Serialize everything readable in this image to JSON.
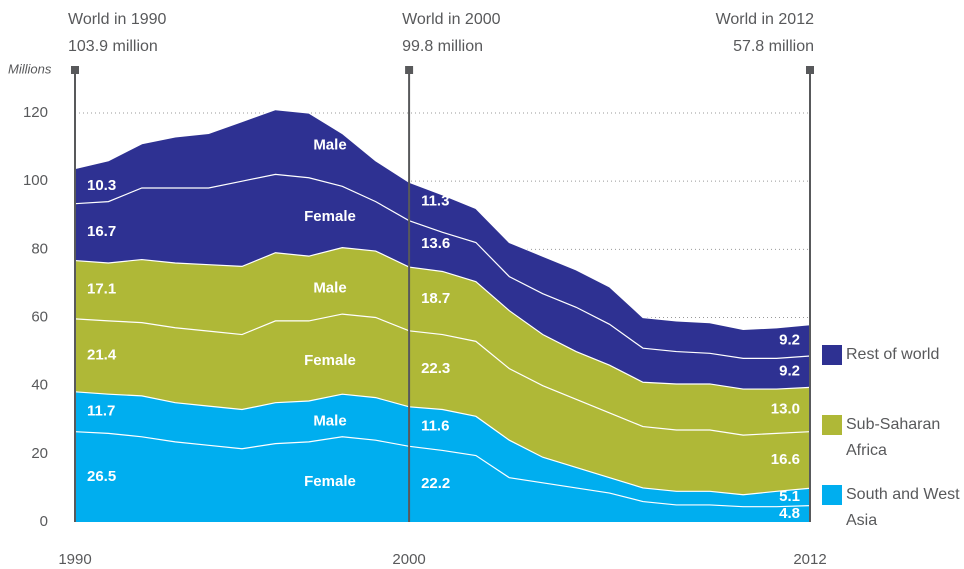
{
  "chart_data": {
    "type": "stacked_area",
    "y_axis_label": "Millions",
    "x": [
      1990,
      1991,
      1992,
      1993,
      1994,
      1995,
      1996,
      1997,
      1998,
      1999,
      2000,
      2001,
      2002,
      2003,
      2004,
      2005,
      2006,
      2007,
      2008,
      2009,
      2010,
      2011,
      2012
    ],
    "xlim": [
      1990,
      2012
    ],
    "xticks": [
      1990,
      2000,
      2012
    ],
    "ylim": [
      0,
      120
    ],
    "yticks": [
      0,
      20,
      40,
      60,
      80,
      100,
      120
    ],
    "grid": true,
    "groups": [
      {
        "name": "South and West Asia",
        "color": "#00aeef",
        "series": [
          {
            "name": "Female",
            "values": [
              26.5,
              26,
              25,
              23.5,
              22.5,
              21.5,
              23,
              23.5,
              25,
              24,
              22.2,
              21,
              19.5,
              13,
              11.5,
              10,
              8.5,
              6,
              5,
              5,
              4.5,
              4.5,
              4.8
            ],
            "value_labels": [
              "26.5",
              null,
              null,
              null,
              null,
              null,
              null,
              null,
              null,
              null,
              "22.2",
              null,
              null,
              null,
              null,
              null,
              null,
              null,
              null,
              null,
              null,
              null,
              "4.8"
            ]
          },
          {
            "name": "Male",
            "values": [
              11.7,
              11.5,
              12,
              11.5,
              11.5,
              11.5,
              12,
              12,
              12.5,
              12.5,
              11.6,
              12,
              11.5,
              11,
              7.5,
              6,
              4.5,
              4,
              4,
              4,
              3.5,
              4.5,
              5.1
            ],
            "value_labels": [
              "11.7",
              null,
              null,
              null,
              null,
              null,
              null,
              null,
              null,
              null,
              "11.6",
              null,
              null,
              null,
              null,
              null,
              null,
              null,
              null,
              null,
              null,
              null,
              "5.1"
            ]
          }
        ]
      },
      {
        "name": "Sub-Saharan Africa",
        "color": "#afb837",
        "series": [
          {
            "name": "Female",
            "values": [
              21.4,
              21.5,
              21.5,
              22,
              22,
              22,
              24,
              23.5,
              23.5,
              23.5,
              22.3,
              22,
              22,
              21,
              21,
              20,
              19,
              18,
              18,
              18,
              17.5,
              17,
              16.6
            ],
            "value_labels": [
              "21.4",
              null,
              null,
              null,
              null,
              null,
              null,
              null,
              null,
              null,
              "22.3",
              null,
              null,
              null,
              null,
              null,
              null,
              null,
              null,
              null,
              null,
              null,
              "16.6"
            ]
          },
          {
            "name": "Male",
            "values": [
              17.1,
              17,
              18.5,
              19,
              19.5,
              20,
              20,
              19,
              19.5,
              19.5,
              18.7,
              18.5,
              17.5,
              17,
              15,
              14,
              14,
              13,
              13.5,
              13.5,
              13.5,
              13,
              13.0
            ],
            "value_labels": [
              "17.1",
              null,
              null,
              null,
              null,
              null,
              null,
              null,
              null,
              null,
              "18.7",
              null,
              null,
              null,
              null,
              null,
              null,
              null,
              null,
              null,
              null,
              null,
              "13.0"
            ]
          }
        ]
      },
      {
        "name": "Rest of world",
        "color": "#2e3192",
        "series": [
          {
            "name": "Female",
            "values": [
              16.7,
              18,
              21,
              22,
              22.5,
              25,
              23,
              23,
              18,
              14.5,
              13.6,
              11.5,
              11.5,
              10,
              12,
              13,
              12,
              10,
              9.5,
              9,
              9,
              9,
              9.2
            ],
            "value_labels": [
              "16.7",
              null,
              null,
              null,
              null,
              null,
              null,
              null,
              null,
              null,
              "13.6",
              null,
              null,
              null,
              null,
              null,
              null,
              null,
              null,
              null,
              null,
              null,
              "9.2"
            ]
          },
          {
            "name": "Male",
            "values": [
              10.3,
              12,
              13,
              15,
              16,
              17.5,
              19,
              19,
              15.5,
              12,
              11.3,
              11,
              10,
              10,
              11,
              11,
              11,
              9,
              9,
              9,
              8.5,
              9,
              9.2
            ],
            "value_labels": [
              "10.3",
              null,
              null,
              null,
              null,
              null,
              null,
              null,
              null,
              null,
              "11.3",
              null,
              null,
              null,
              null,
              null,
              null,
              null,
              null,
              null,
              null,
              null,
              "9.2"
            ]
          }
        ]
      }
    ],
    "annotations": [
      {
        "x": 1990,
        "text": "World in 1990",
        "total": 103.9,
        "total_label": "103.9 million"
      },
      {
        "x": 2000,
        "text": "World in 2000",
        "total": 99.8,
        "total_label": "99.8 million"
      },
      {
        "x": 2012,
        "text": "World in 2012",
        "total": 57.8,
        "total_label": "57.8 million"
      }
    ]
  }
}
